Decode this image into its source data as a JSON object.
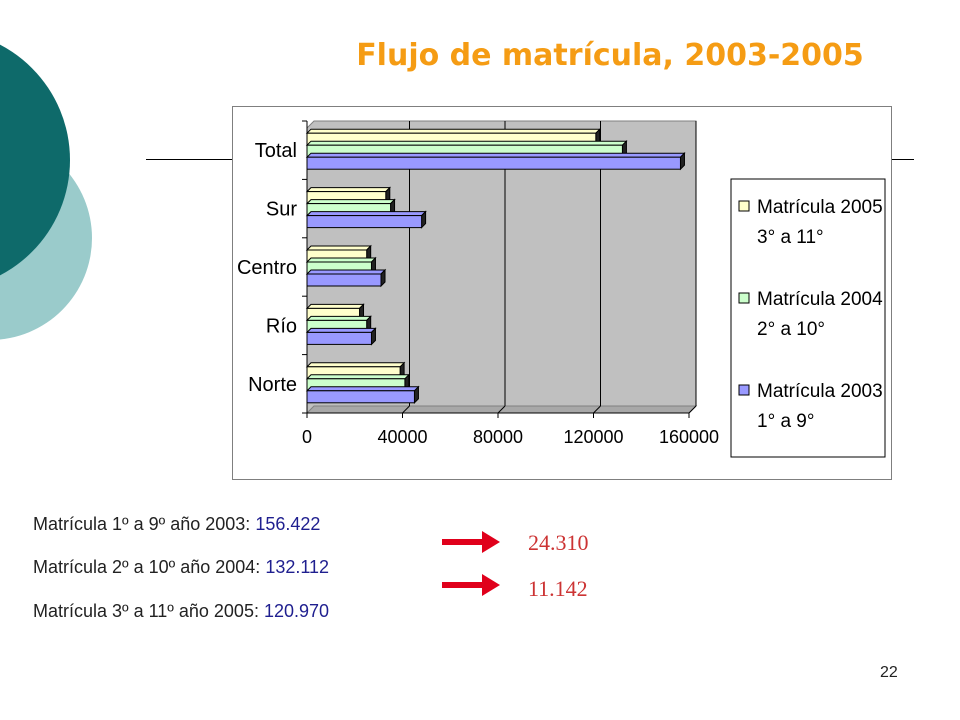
{
  "title": "Flujo de matrícula, 2003-2005",
  "page_number": "22",
  "colors": {
    "title": "#F59C14",
    "teal_dark": "#0E6A6A",
    "teal_light": "#9ACBCB",
    "diff": "#CC3333",
    "stat_value": "#1F1F8F"
  },
  "chart_data": {
    "type": "bar",
    "orientation": "horizontal",
    "categories": [
      "Total",
      "Sur",
      "Centro",
      "Río",
      "Norte"
    ],
    "series": [
      {
        "name": "Matrícula 2005",
        "subtitle": "3° a 11°",
        "color": "#FFFFCC",
        "values": [
          120970,
          33000,
          25000,
          22000,
          39000
        ]
      },
      {
        "name": "Matrícula 2004",
        "subtitle": "2° a 10°",
        "color": "#CCFFCC",
        "values": [
          132112,
          35000,
          27000,
          25000,
          41000
        ]
      },
      {
        "name": "Matrícula 2003",
        "subtitle": "1° a 9°",
        "color": "#9999FF",
        "values": [
          156422,
          48000,
          31000,
          27000,
          45000
        ]
      }
    ],
    "xlim": [
      0,
      160000
    ],
    "xticks": [
      "0",
      "40000",
      "80000",
      "120000",
      "160000"
    ],
    "xtick_values": [
      0,
      40000,
      80000,
      120000,
      160000
    ],
    "grid": true,
    "legend_position": "right"
  },
  "stats": [
    {
      "label": "Matrícula 1º a 9º año 2003:",
      "value": "156.422"
    },
    {
      "label": "Matrícula 2º a 10º año 2004:",
      "value": "132.112"
    },
    {
      "label": "Matrícula 3º a 11º año 2005:",
      "value": "120.970"
    }
  ],
  "differences": [
    "24.310",
    "11.142"
  ]
}
